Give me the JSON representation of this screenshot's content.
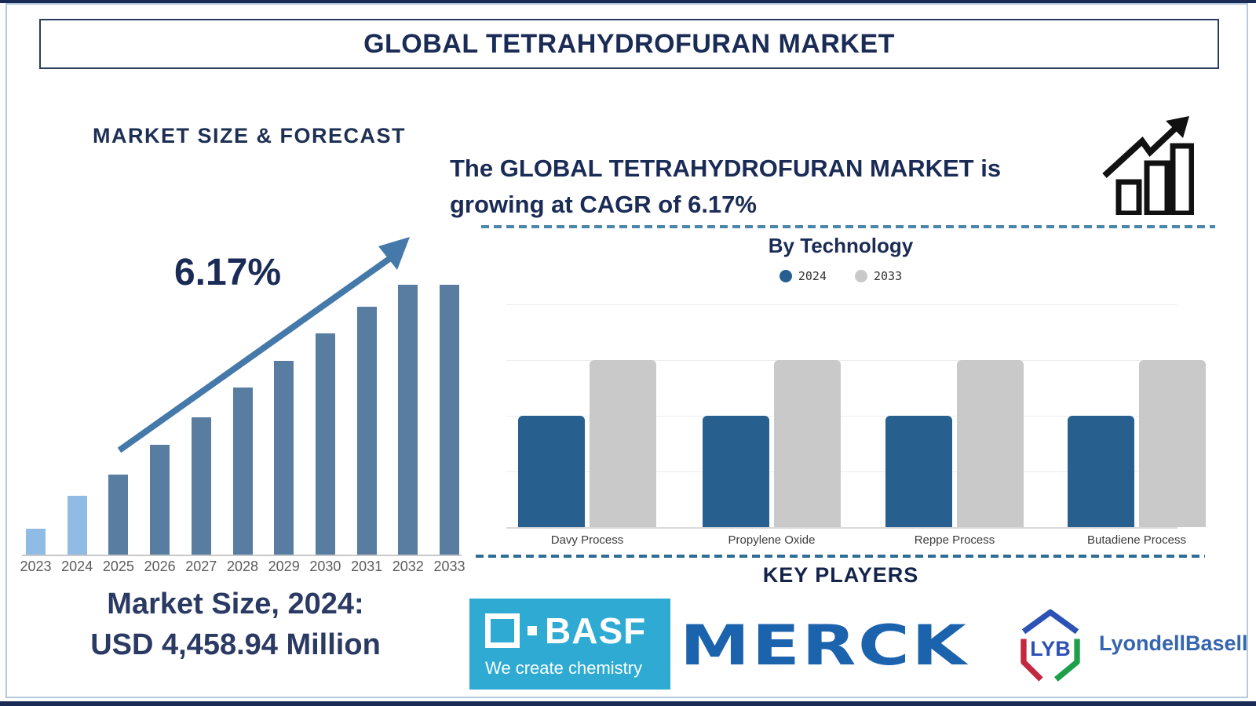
{
  "page": {
    "title": "GLOBAL TETRAHYDROFURAN MARKET"
  },
  "left_section": {
    "heading": "MARKET SIZE & FORECAST",
    "cagr_annotation": "6.17%",
    "market_size_line1": "Market Size, 2024:",
    "market_size_line2": "USD 4,458.94 Million"
  },
  "right_section": {
    "headline_line1": "The GLOBAL TETRAHYDROFURAN MARKET is",
    "headline_line2": "growing at CAGR of 6.17%",
    "section_title": "By Technology",
    "key_players_title": "KEY PLAYERS"
  },
  "chart_data": [
    {
      "id": "market-size-forecast",
      "type": "bar",
      "title": "MARKET SIZE & FORECAST",
      "annotation": "6.17%",
      "categories": [
        "2023",
        "2024",
        "2025",
        "2026",
        "2027",
        "2028",
        "2029",
        "2030",
        "2031",
        "2032",
        "2033"
      ],
      "values_pct_of_max": [
        10,
        22,
        30,
        41,
        51,
        62,
        72,
        82,
        92,
        100,
        100
      ],
      "highlight_years": [
        "2023",
        "2024"
      ],
      "colors": {
        "highlight": "#8fbbe4",
        "default": "#587da1"
      },
      "axis_labels": "years on x-axis, no y-axis shown (stylized relative heights)"
    },
    {
      "id": "by-technology",
      "type": "bar",
      "title": "By Technology",
      "categories": [
        "Davy Process",
        "Propylene Oxide",
        "Reppe Process",
        "Butadiene Process"
      ],
      "series": [
        {
          "name": "2024",
          "values_pct_of_max": [
            50,
            50,
            50,
            50
          ],
          "color": "#27608f"
        },
        {
          "name": "2033",
          "values_pct_of_max": [
            75,
            75,
            75,
            75
          ],
          "color": "#c9c9c9"
        }
      ],
      "legend_position": "top",
      "grid": true,
      "gridline_count": 5
    }
  ],
  "logos": {
    "basf": {
      "wordmark": "BASF",
      "tagline": "We create chemistry",
      "bg_color": "#2fabd3",
      "text_color": "#ffffff"
    },
    "merck": {
      "wordmark": "MERCK",
      "color": "#1c63ad"
    },
    "lyondellbasell": {
      "abbr": "LYB",
      "wordmark": "LyondellBasell",
      "text_color": "#3565ae",
      "hex_blue": "#2d52b5",
      "hex_red": "#c22840",
      "hex_green": "#1ea04b"
    }
  },
  "colors": {
    "navy": "#1a2b55",
    "frame_border": "#b6cade",
    "dashed_line_top": "#4b86ab",
    "dashed_line_bottom": "#2e6e96",
    "arrow": "#4479a9",
    "growth_icon": "#111111",
    "year_label": "#5c5c5c",
    "category_label": "#3c3c3c"
  }
}
